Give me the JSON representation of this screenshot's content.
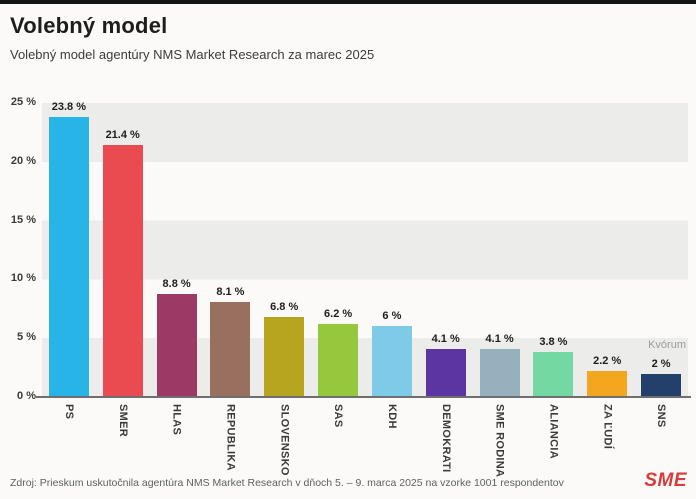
{
  "header": {
    "title": "Volebný model",
    "subtitle": "Volebný model agentúry NMS Market Research za marec 2025"
  },
  "chart_data": {
    "type": "bar",
    "categories": [
      "PS",
      "SMER",
      "HLAS",
      "REPUBLIKA",
      "SLOVENSKO",
      "SAS",
      "KDH",
      "DEMOKRATI",
      "SME RODINA",
      "ALIANCIA",
      "ZA ĽUDÍ",
      "SNS"
    ],
    "values": [
      23.8,
      21.4,
      8.8,
      8.1,
      6.8,
      6.2,
      6,
      4.1,
      4.1,
      3.8,
      2.2,
      2
    ],
    "value_labels": [
      "23.8 %",
      "21.4 %",
      "8.8 %",
      "8.1 %",
      "6.8 %",
      "6.2 %",
      "6 %",
      "4.1 %",
      "4.1 %",
      "3.8 %",
      "2.2 %",
      "2 %"
    ],
    "bar_colors": [
      "#29b4e8",
      "#e94b50",
      "#9c3a64",
      "#997060",
      "#b7a41f",
      "#95c83c",
      "#7ecbe9",
      "#5d35a3",
      "#96b0bd",
      "#73d8a1",
      "#f3a71e",
      "#23406d"
    ],
    "title": "Volebný model",
    "xlabel": "",
    "ylabel": "",
    "ylim": [
      0,
      25
    ],
    "y_tick_values": [
      0,
      5,
      10,
      15,
      20,
      25
    ],
    "y_tick_labels": [
      "0 %",
      "5 %",
      "10 %",
      "15 %",
      "20 %",
      "25 %"
    ],
    "grid": "alternating horizontal bands every 5%",
    "legend": "none",
    "annotation": {
      "label": "Kvórum",
      "value": 5
    }
  },
  "footer": {
    "source": "Zdroj: Prieskum uskutočnila agentúra NMS Market Research v dňoch 5. – 9. marca 2025 na vzorke 1001 respondentov",
    "logo": "SME"
  },
  "colors": {
    "background": "#fbfaf9",
    "band_gray": "#ececea",
    "axis": "#6f6f6f",
    "logo_red": "#d63c3c",
    "top_bar": "#141414"
  }
}
